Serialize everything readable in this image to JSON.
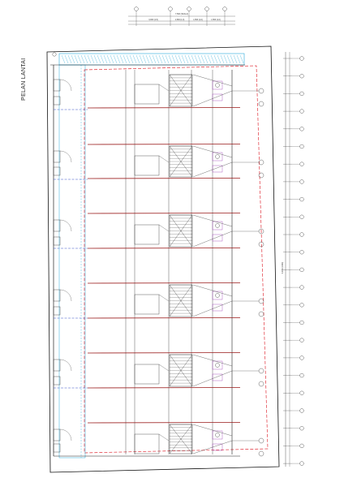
{
  "drawing": {
    "title": "PELAN LANTAI",
    "top_dimension_total": "7,500 (SKALA)",
    "top_dimensions": [
      "3,000 (1,5)",
      "1,500 (1,0)",
      "1,500 (1,0)",
      "1,500 (1,0)"
    ],
    "right_dimension_label": "3,000 (3,000)",
    "colors": {
      "line": "#333333",
      "wall": "#222222",
      "red_dashed": "#e0303a",
      "red_beam": "#9a1b1b",
      "blue_grid": "#3b55c8",
      "cyan_hatch": "#29a9d9",
      "purple_fixture": "#9b3bb5"
    },
    "unit_count": 6
  }
}
